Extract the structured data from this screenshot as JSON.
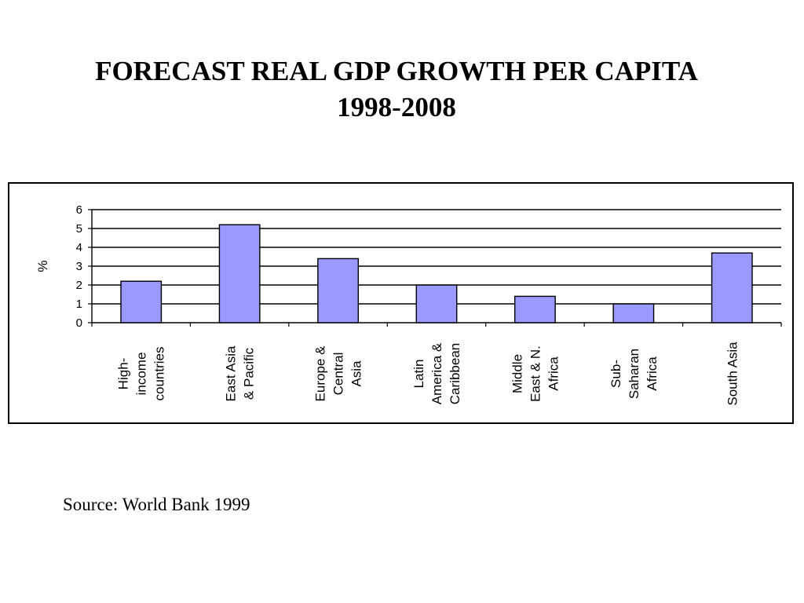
{
  "title": {
    "line1": "FORECAST REAL GDP GROWTH PER CAPITA",
    "line2": "1998-2008"
  },
  "source": "Source: World Bank 1999",
  "chart_data": {
    "type": "bar",
    "title": "FORECAST REAL GDP GROWTH PER CAPITA 1998-2008",
    "xlabel": "",
    "ylabel": "%",
    "ylim": [
      0,
      6
    ],
    "yticks": [
      "0",
      "1",
      "2",
      "3",
      "4",
      "5",
      "6"
    ],
    "grid": true,
    "categories": [
      [
        "High-",
        "income",
        "countries"
      ],
      [
        "East Asia",
        "& Pacific"
      ],
      [
        "Europe &",
        "Central",
        "Asia"
      ],
      [
        "Latin",
        "America &",
        "Caribbean"
      ],
      [
        "Middle",
        "East & N.",
        "Africa"
      ],
      [
        "Sub-",
        "Saharan",
        "Africa"
      ],
      [
        "South Asia"
      ]
    ],
    "values": [
      2.2,
      5.2,
      3.4,
      2.0,
      1.4,
      1.0,
      3.7
    ],
    "bar_color": "#9999ff",
    "bar_edge_color": "#000000"
  }
}
